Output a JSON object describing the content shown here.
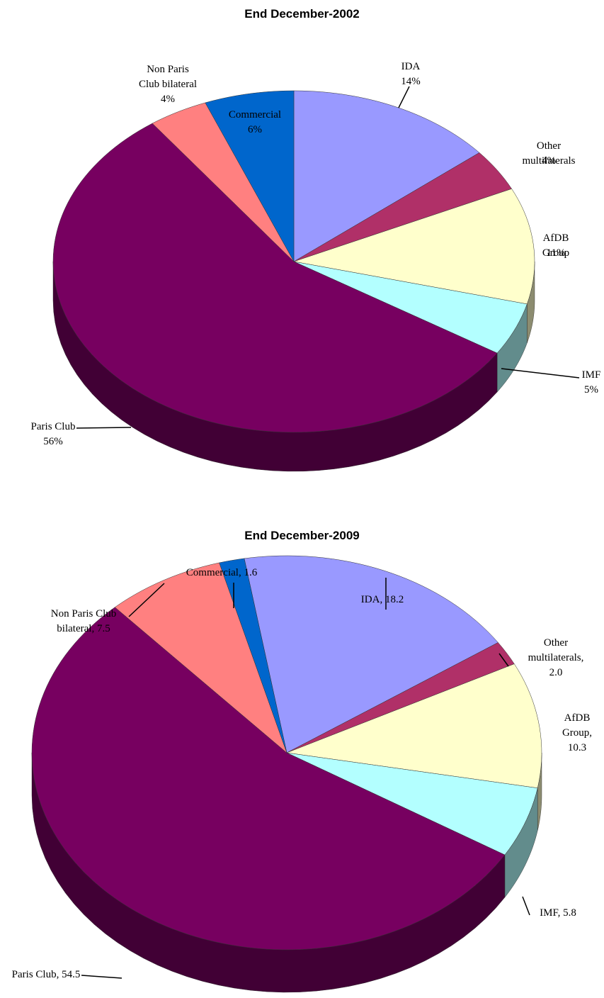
{
  "chart_data": [
    {
      "type": "pie3d",
      "title": "End December-2002",
      "categories": [
        "IDA",
        "Other multilaterals",
        "AfDB Group",
        "IMF",
        "Paris Club",
        "Non Paris\nClub bilateral",
        "Commercial"
      ],
      "values": [
        14,
        4,
        11,
        5,
        56,
        4,
        6
      ],
      "value_labels": [
        "14%",
        "4%",
        "11%",
        "5%",
        "56%",
        "4%",
        "6%"
      ],
      "colors": [
        "#9999ff",
        "#b03068",
        "#ffffcc",
        "#b3ffff",
        "#770060",
        "#ff8080",
        "#0066cc"
      ]
    },
    {
      "type": "pie3d",
      "title": "End December-2009",
      "categories": [
        "IDA, 18.2",
        "Other multilaterals,\n2.0",
        "AfDB Group, 10.3",
        "IMF, 5.8",
        "Paris Club, 54.5",
        "Non Paris Club\nbilateral, 7.5",
        "Commercial, 1.6"
      ],
      "values": [
        18.2,
        2.0,
        10.3,
        5.8,
        54.5,
        7.5,
        1.6
      ],
      "colors": [
        "#9999ff",
        "#b03068",
        "#ffffcc",
        "#b3ffff",
        "#770060",
        "#ff8080",
        "#0066cc"
      ]
    }
  ]
}
